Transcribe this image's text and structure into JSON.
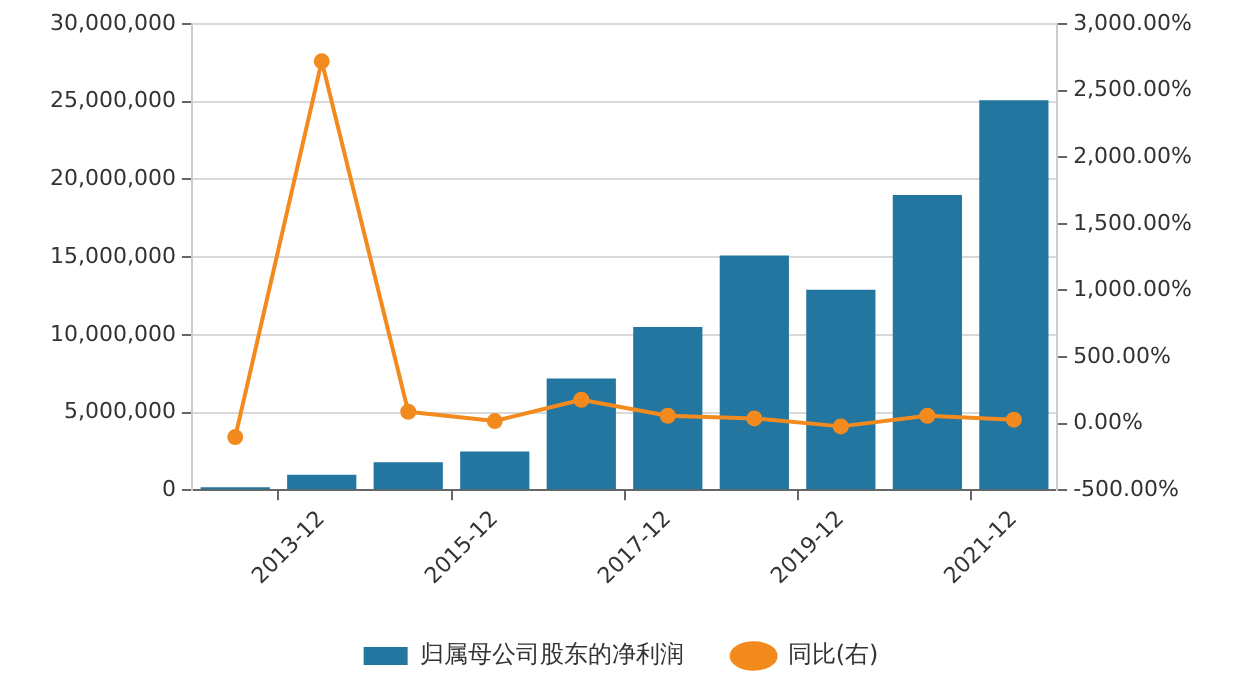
{
  "chart_data": {
    "type": "bar",
    "categories": [
      null,
      "2013-12",
      null,
      "2015-12",
      null,
      "2017-12",
      null,
      "2019-12",
      null,
      "2021-12"
    ],
    "series": [
      {
        "name": "归属母公司股东的净利润",
        "color": "#23769f",
        "values": [
          200000,
          1000000,
          1800000,
          2500000,
          7200000,
          10500000,
          15100000,
          12900000,
          19000000,
          25100000
        ]
      },
      {
        "name": "同比(右)",
        "type": "line",
        "axis": "y2",
        "color": "#f28a1e",
        "values": [
          -100,
          2720,
          90,
          20,
          180,
          60,
          40,
          -20,
          60,
          30
        ]
      }
    ],
    "ylim": [
      0,
      30000000
    ],
    "yticks": [
      {
        "value": 0,
        "label": "0"
      },
      {
        "value": 5000000,
        "label": "5,000,000"
      },
      {
        "value": 10000000,
        "label": "10,000,000"
      },
      {
        "value": 15000000,
        "label": "15,000,000"
      },
      {
        "value": 20000000,
        "label": "20,000,000"
      },
      {
        "value": 25000000,
        "label": "25,000,000"
      },
      {
        "value": 30000000,
        "label": "30,000,000"
      }
    ],
    "y2lim": [
      -500,
      3000
    ],
    "y2ticks": [
      {
        "value": -500,
        "label": "-500.00%"
      },
      {
        "value": 0,
        "label": "0.00%"
      },
      {
        "value": 500,
        "label": "500.00%"
      },
      {
        "value": 1000,
        "label": "1,000.00%"
      },
      {
        "value": 1500,
        "label": "1,500.00%"
      },
      {
        "value": 2000,
        "label": "2,000.00%"
      },
      {
        "value": 2500,
        "label": "2,500.00%"
      },
      {
        "value": 3000,
        "label": "3,000.00%"
      }
    ],
    "grid": "y",
    "legend": "bottom",
    "marker": "circle",
    "line_style": "solid"
  }
}
